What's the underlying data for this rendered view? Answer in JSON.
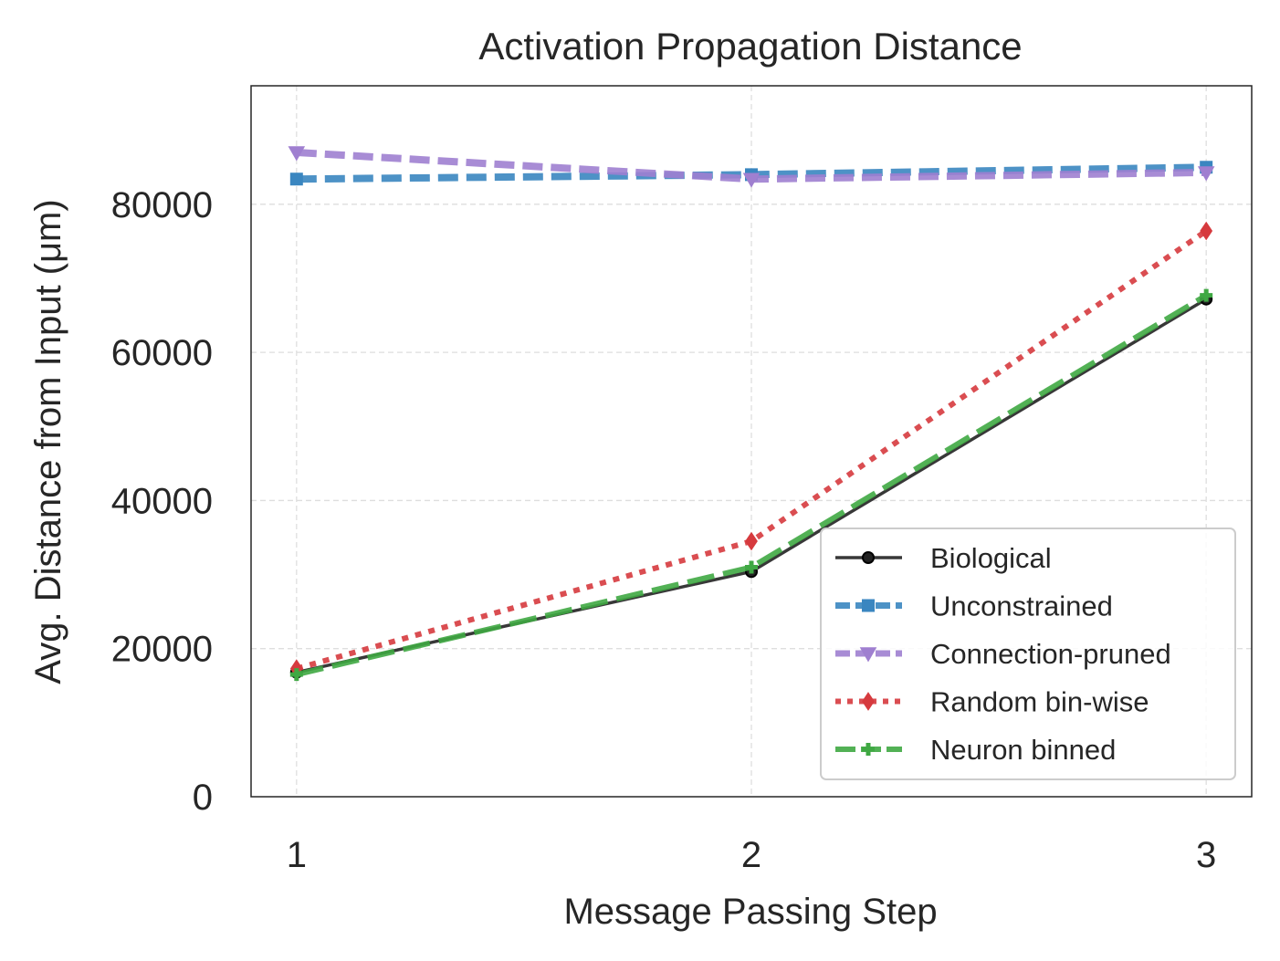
{
  "chart_data": {
    "type": "line",
    "title": "Activation Propagation Distance",
    "xlabel": "Message Passing Step",
    "ylabel": "Avg. Distance from Input (μm)",
    "x": [
      1,
      2,
      3
    ],
    "xlim": [
      0.9,
      3.1
    ],
    "ylim": [
      0,
      96000
    ],
    "xticks": [
      "1",
      "2",
      "3"
    ],
    "yticks": [
      "0",
      "20000",
      "40000",
      "60000",
      "80000"
    ],
    "grid": true,
    "legend_position": "lower-right",
    "series": [
      {
        "name": "Biological",
        "values": [
          16800,
          30400,
          67200
        ],
        "color": "#222222",
        "marker": "circle",
        "dash": "solid",
        "width": 3.5
      },
      {
        "name": "Unconstrained",
        "values": [
          83400,
          84000,
          85000
        ],
        "color": "#3a86c0",
        "marker": "square",
        "dash": "dashed",
        "width": 8
      },
      {
        "name": "Connection-pruned",
        "values": [
          87000,
          83400,
          84300
        ],
        "color": "#9f7fd0",
        "marker": "triangle-down",
        "dash": "dashed",
        "width": 8
      },
      {
        "name": "Random bin-wise",
        "values": [
          17300,
          34500,
          76400
        ],
        "color": "#d63a3e",
        "marker": "diamond",
        "dash": "dotted",
        "width": 6
      },
      {
        "name": "Neuron binned",
        "values": [
          16500,
          31000,
          67700
        ],
        "color": "#3fa843",
        "marker": "plus",
        "dash": "longdash",
        "width": 6
      }
    ]
  }
}
